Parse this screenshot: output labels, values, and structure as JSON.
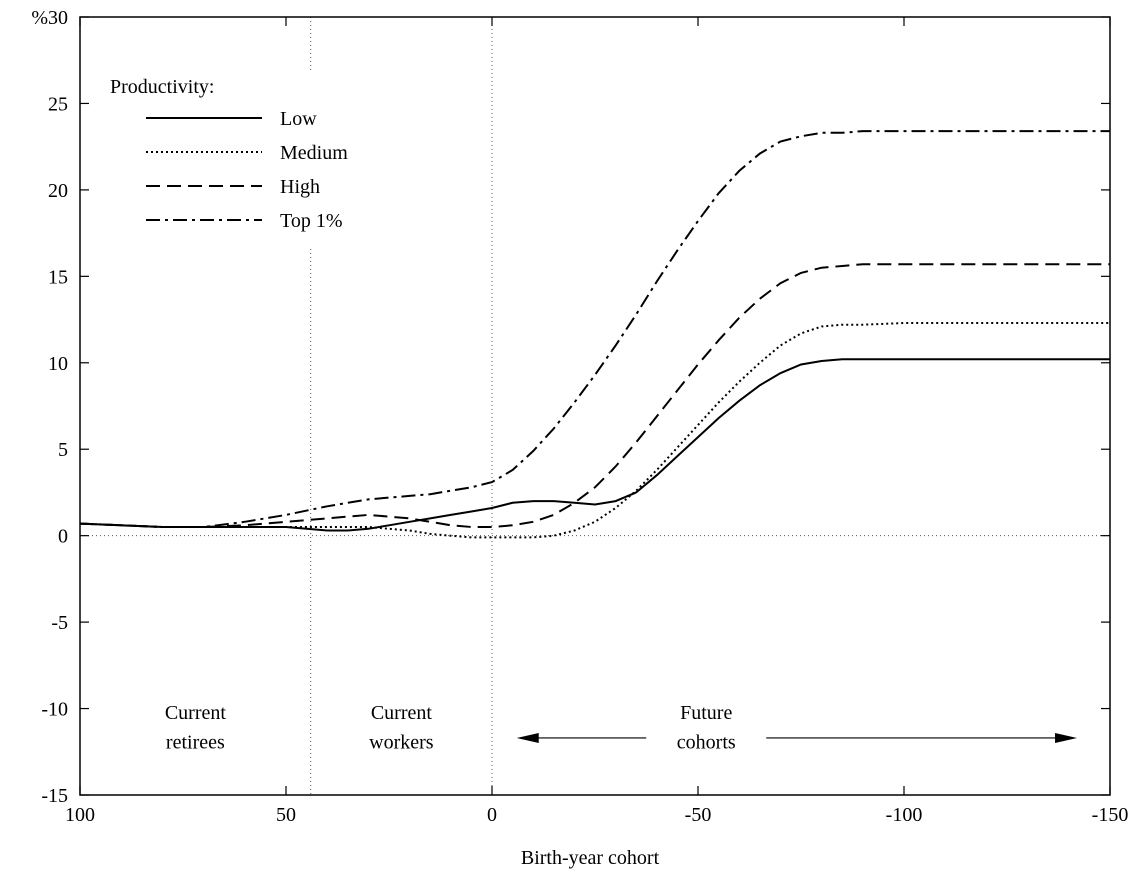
{
  "chart_data": {
    "type": "line",
    "y_axis_unit": "%",
    "xlabel": "Birth-year cohort",
    "ylabel": "",
    "xlim": [
      100,
      -150
    ],
    "ylim": [
      -15,
      30
    ],
    "x_ticks": [
      100,
      50,
      0,
      -50,
      -100,
      -150
    ],
    "y_ticks": [
      -15,
      -10,
      -5,
      0,
      5,
      10,
      15,
      20,
      25,
      30
    ],
    "legend": {
      "title": "Productivity:",
      "position": "top-left"
    },
    "reference_lines": {
      "horizontal_zero": true,
      "vertical_at": [
        44,
        0
      ]
    },
    "regions": [
      {
        "lines": [
          "Current",
          "retirees"
        ],
        "x": 72
      },
      {
        "lines": [
          "Current",
          "workers"
        ],
        "x": 22
      },
      {
        "lines": [
          "Future",
          "cohorts"
        ],
        "x": -52,
        "arrow_from": -6,
        "arrow_to": -142
      }
    ],
    "series": [
      {
        "name": "Low",
        "dash": "",
        "x": [
          100,
          90,
          80,
          70,
          60,
          50,
          40,
          35,
          30,
          25,
          20,
          15,
          10,
          5,
          0,
          -5,
          -10,
          -15,
          -20,
          -25,
          -30,
          -35,
          -40,
          -45,
          -50,
          -55,
          -60,
          -65,
          -70,
          -75,
          -80,
          -85,
          -90,
          -100,
          -110,
          -120,
          -130,
          -140,
          -150
        ],
        "y": [
          0.7,
          0.6,
          0.5,
          0.5,
          0.5,
          0.5,
          0.3,
          0.3,
          0.4,
          0.6,
          0.8,
          1.0,
          1.2,
          1.4,
          1.6,
          1.9,
          2.0,
          2.0,
          1.9,
          1.8,
          2.0,
          2.5,
          3.5,
          4.6,
          5.7,
          6.8,
          7.8,
          8.7,
          9.4,
          9.9,
          10.1,
          10.2,
          10.2,
          10.2,
          10.2,
          10.2,
          10.2,
          10.2,
          10.2
        ]
      },
      {
        "name": "Medium",
        "dash": "2,3",
        "x": [
          100,
          90,
          80,
          70,
          60,
          50,
          40,
          35,
          30,
          25,
          20,
          15,
          10,
          5,
          0,
          -5,
          -10,
          -15,
          -20,
          -25,
          -30,
          -35,
          -40,
          -45,
          -50,
          -55,
          -60,
          -65,
          -70,
          -75,
          -80,
          -85,
          -90,
          -100,
          -110,
          -120,
          -130,
          -140,
          -150
        ],
        "y": [
          0.7,
          0.6,
          0.5,
          0.5,
          0.5,
          0.5,
          0.5,
          0.5,
          0.5,
          0.4,
          0.3,
          0.1,
          0.0,
          -0.1,
          -0.1,
          -0.1,
          -0.1,
          0.0,
          0.3,
          0.8,
          1.6,
          2.6,
          3.8,
          5.1,
          6.4,
          7.7,
          8.9,
          10.0,
          11.0,
          11.7,
          12.1,
          12.2,
          12.2,
          12.3,
          12.3,
          12.3,
          12.3,
          12.3,
          12.3
        ]
      },
      {
        "name": "High",
        "dash": "14,7",
        "x": [
          100,
          90,
          80,
          70,
          60,
          50,
          40,
          35,
          30,
          25,
          20,
          15,
          10,
          5,
          0,
          -5,
          -10,
          -15,
          -20,
          -25,
          -30,
          -35,
          -40,
          -45,
          -50,
          -55,
          -60,
          -65,
          -70,
          -75,
          -80,
          -85,
          -90,
          -100,
          -110,
          -120,
          -130,
          -140,
          -150
        ],
        "y": [
          0.7,
          0.6,
          0.5,
          0.5,
          0.6,
          0.8,
          1.0,
          1.1,
          1.2,
          1.1,
          1.0,
          0.8,
          0.6,
          0.5,
          0.5,
          0.6,
          0.8,
          1.2,
          1.9,
          2.8,
          4.0,
          5.4,
          6.9,
          8.4,
          9.9,
          11.3,
          12.6,
          13.7,
          14.6,
          15.2,
          15.5,
          15.6,
          15.7,
          15.7,
          15.7,
          15.7,
          15.7,
          15.7,
          15.7
        ]
      },
      {
        "name": "Top 1%",
        "dash": "14,5,3,5",
        "x": [
          100,
          90,
          80,
          70,
          60,
          50,
          40,
          35,
          30,
          25,
          20,
          15,
          10,
          5,
          0,
          -5,
          -10,
          -15,
          -20,
          -25,
          -30,
          -35,
          -40,
          -45,
          -50,
          -55,
          -60,
          -65,
          -70,
          -75,
          -80,
          -85,
          -90,
          -100,
          -110,
          -120,
          -130,
          -140,
          -150
        ],
        "y": [
          0.7,
          0.6,
          0.5,
          0.5,
          0.8,
          1.2,
          1.7,
          1.9,
          2.1,
          2.2,
          2.3,
          2.4,
          2.6,
          2.8,
          3.1,
          3.8,
          4.9,
          6.2,
          7.7,
          9.3,
          11.0,
          12.8,
          14.7,
          16.5,
          18.2,
          19.8,
          21.1,
          22.1,
          22.8,
          23.1,
          23.3,
          23.3,
          23.4,
          23.4,
          23.4,
          23.4,
          23.4,
          23.4,
          23.4
        ]
      }
    ]
  }
}
